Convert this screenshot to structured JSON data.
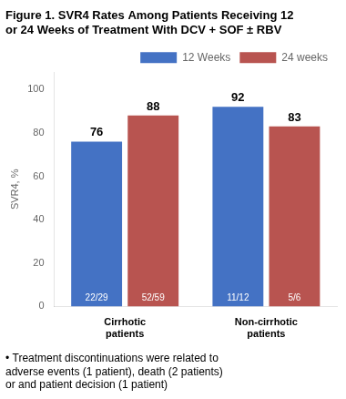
{
  "chart_data": {
    "type": "bar",
    "title": "Figure 1. SVR4 Rates Among Patients Receiving 12\nor 24 Weeks of Treatment With DCV + SOF ± RBV",
    "categories": [
      "Cirrhotic\npatients",
      "Non-cirrhotic\npatients"
    ],
    "series": [
      {
        "name": "12 Weeks",
        "color": "#4472C4",
        "values": [
          76,
          92
        ],
        "fractions": [
          "22/29",
          "11/12"
        ]
      },
      {
        "name": "24 weeks",
        "color": "#B85450",
        "values": [
          88,
          83
        ],
        "fractions": [
          "52/59",
          "5/6"
        ]
      }
    ],
    "ylabel": "SVR4, %",
    "ylim": [
      0,
      108
    ],
    "yticks": [
      0,
      20,
      40,
      60,
      80,
      100
    ],
    "grid": false,
    "legend": "upper right",
    "data_labels": true,
    "footnote": "• Treatment discontinuations were related to\nadverse events (1 patient), death (2 patients)\nor and patient decision (1 patient)"
  }
}
